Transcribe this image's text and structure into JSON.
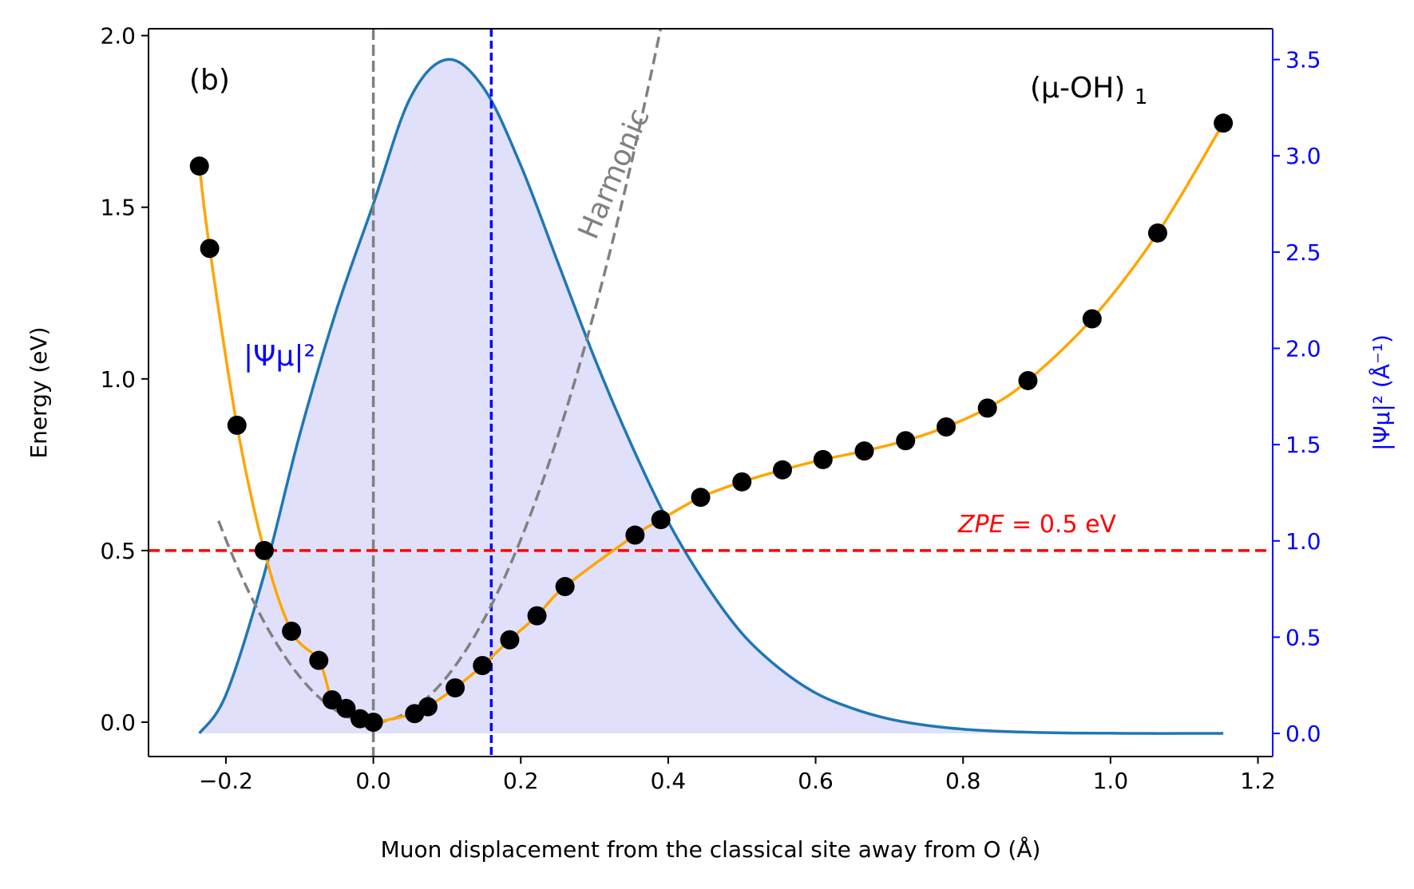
{
  "chart_data": {
    "type": "line",
    "panel_label": "(b)",
    "system_label": "(μ-OH)",
    "system_subscript": "1",
    "xlabel": "Muon displacement from the classical site away from O (Å)",
    "ylabel_left": "Energy (eV)",
    "ylabel_right": "|Ψμ|² (Å⁻¹)",
    "xlim": [
      -0.305,
      1.22
    ],
    "ylim_left": [
      -0.1,
      2.02
    ],
    "ylim_right": [
      -0.12,
      3.66
    ],
    "xticks": [
      "−0.2",
      "0.0",
      "0.2",
      "0.4",
      "0.6",
      "0.8",
      "1.0",
      "1.2"
    ],
    "xtick_values": [
      -0.2,
      0.0,
      0.2,
      0.4,
      0.6,
      0.8,
      1.0,
      1.2
    ],
    "yticks_left": [
      "0.0",
      "0.5",
      "1.0",
      "1.5",
      "2.0"
    ],
    "ytick_values_left": [
      0.0,
      0.5,
      1.0,
      1.5,
      2.0
    ],
    "yticks_right": [
      "0.0",
      "0.5",
      "1.0",
      "1.5",
      "2.0",
      "2.5",
      "3.0",
      "3.5"
    ],
    "ytick_values_right": [
      0.0,
      0.5,
      1.0,
      1.5,
      2.0,
      2.5,
      3.0,
      3.5
    ],
    "colors": {
      "points": "#000000",
      "fit": "#ffa500",
      "harmonic": "#808080",
      "wavefunction": "#1f77b4",
      "wavefunction_fill": "#e0e0fb",
      "zpe": "#ff0000",
      "expectation": "#0000ff",
      "right_axis": "#0000ff"
    },
    "energy_points": {
      "x": [
        -0.236,
        -0.222,
        -0.185,
        -0.148,
        -0.111,
        -0.074,
        -0.056,
        -0.037,
        -0.018,
        0.0,
        0.056,
        0.074,
        0.111,
        0.148,
        0.185,
        0.222,
        0.26,
        0.355,
        0.39,
        0.444,
        0.5,
        0.555,
        0.61,
        0.666,
        0.722,
        0.777,
        0.833,
        0.888,
        0.975,
        1.064,
        1.153
      ],
      "y": [
        1.62,
        1.38,
        0.865,
        0.5,
        0.265,
        0.18,
        0.065,
        0.04,
        0.01,
        0.0,
        0.025,
        0.045,
        0.1,
        0.165,
        0.24,
        0.31,
        0.395,
        0.545,
        0.59,
        0.655,
        0.7,
        0.735,
        0.765,
        0.79,
        0.82,
        0.86,
        0.915,
        0.995,
        1.175,
        1.425,
        1.745
      ]
    },
    "harmonic": {
      "name": "Harmonic",
      "x_range": [
        -0.21,
        0.39
      ],
      "curvature": 13.3
    },
    "wavefunction": {
      "name": "|Ψμ|²",
      "x": [
        -0.236,
        -0.2,
        -0.15,
        -0.1,
        -0.05,
        0.0,
        0.05,
        0.1,
        0.15,
        0.2,
        0.25,
        0.3,
        0.35,
        0.4,
        0.45,
        0.5,
        0.55,
        0.6,
        0.65,
        0.7,
        0.75,
        0.8,
        0.85,
        0.9,
        0.95,
        1.0,
        1.05,
        1.1,
        1.153
      ],
      "y": [
        0.0,
        0.2,
        0.8,
        1.55,
        2.2,
        2.75,
        3.3,
        3.5,
        3.35,
        2.95,
        2.45,
        1.95,
        1.5,
        1.1,
        0.78,
        0.52,
        0.34,
        0.21,
        0.13,
        0.075,
        0.042,
        0.022,
        0.011,
        0.005,
        0.002,
        0.001,
        0.0,
        0.0,
        0.0
      ]
    },
    "zpe": {
      "value": 0.5,
      "label_var": "ZPE",
      "label_rest": " = 0.5 eV"
    },
    "expectation_x": 0.16,
    "classical_site_x": 0.0
  }
}
